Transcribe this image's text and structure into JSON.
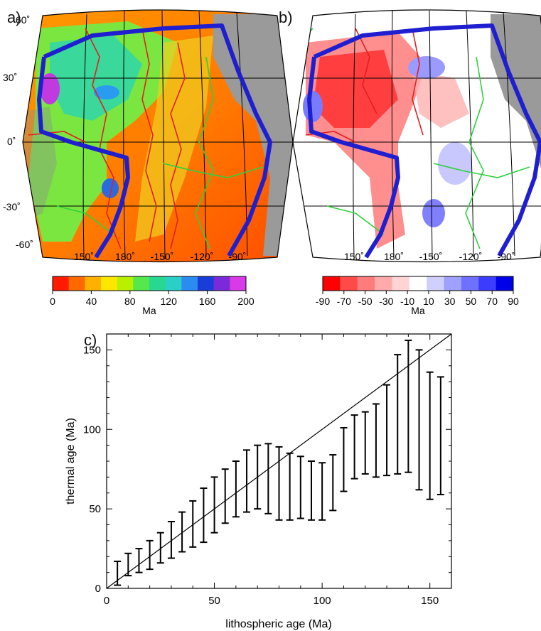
{
  "panels": {
    "a": {
      "label": "a)"
    },
    "b": {
      "label": "b)"
    },
    "c": {
      "label": "c)"
    }
  },
  "maps": {
    "lat_labels": [
      "60˚",
      "30˚",
      "0˚",
      "-30˚",
      "-60˚"
    ],
    "lon_labels": [
      "150˚",
      "180˚",
      "-150˚",
      "-120˚",
      "-90˚"
    ],
    "a": {
      "colorbar": {
        "ticks": [
          "0",
          "40",
          "80",
          "120",
          "160",
          "200"
        ],
        "unit": "Ma",
        "range": [
          0,
          200
        ],
        "colors": [
          "#ff1a00",
          "#ff6a00",
          "#ffb000",
          "#ffe600",
          "#b8f000",
          "#54e84a",
          "#28d890",
          "#2ad0c8",
          "#2a8cf0",
          "#1a3cd8",
          "#7a2ad8",
          "#d83ae8"
        ]
      }
    },
    "b": {
      "colorbar": {
        "ticks": [
          "-90",
          "-70",
          "-50",
          "-30",
          "-10",
          "10",
          "30",
          "50",
          "70",
          "90"
        ],
        "unit": "Ma",
        "range": [
          -90,
          90
        ],
        "colors": [
          "#ff0000",
          "#ff4a4a",
          "#ff7c7c",
          "#ffaaaa",
          "#ffd4d4",
          "#ffffff",
          "#d0d0ff",
          "#a0a0ff",
          "#7070ff",
          "#3c3cff",
          "#0000e8"
        ]
      }
    },
    "colors": {
      "pacific_boundary": "#1f1fd0",
      "age_contour": "#e02020",
      "plate_boundary": "#30d040",
      "land": "#9a9a9a"
    }
  },
  "chart_data": {
    "type": "errorbar",
    "title": "",
    "xlabel": "lithospheric age (Ma)",
    "ylabel": "thermal age (Ma)",
    "xlim": [
      0,
      160
    ],
    "ylim": [
      0,
      160
    ],
    "xticks": [
      0,
      50,
      100,
      150
    ],
    "yticks": [
      0,
      50,
      100,
      150
    ],
    "reference_line": "y = x",
    "x": [
      5,
      10,
      15,
      20,
      25,
      30,
      35,
      40,
      45,
      50,
      55,
      60,
      65,
      70,
      75,
      80,
      85,
      90,
      95,
      100,
      105,
      110,
      115,
      120,
      125,
      130,
      135,
      140,
      145,
      150,
      155
    ],
    "lower": [
      2,
      8,
      10,
      12,
      16,
      19,
      23,
      26,
      29,
      35,
      41,
      45,
      48,
      50,
      47,
      43,
      43,
      44,
      43,
      43,
      49,
      61,
      69,
      72,
      70,
      71,
      72,
      73,
      62,
      56,
      59
    ],
    "upper": [
      17,
      22,
      25,
      30,
      35,
      42,
      48,
      55,
      63,
      70,
      75,
      80,
      87,
      90,
      91,
      89,
      85,
      83,
      80,
      79,
      84,
      101,
      109,
      111,
      116,
      128,
      147,
      156,
      150,
      136,
      133
    ]
  }
}
